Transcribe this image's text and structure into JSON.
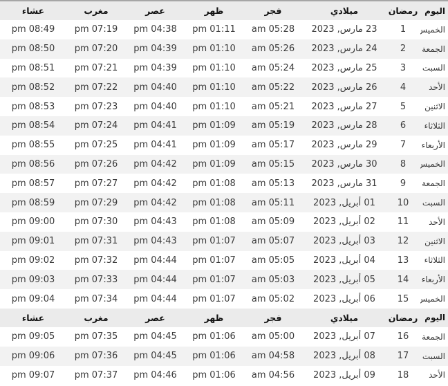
{
  "table": {
    "columns": [
      {
        "key": "day",
        "label": "اليوم"
      },
      {
        "key": "ramadan",
        "label": "رمضان"
      },
      {
        "key": "gregorian",
        "label": "ميلادي"
      },
      {
        "key": "fajr",
        "label": "فجر"
      },
      {
        "key": "dhuhr",
        "label": "ظهر"
      },
      {
        "key": "asr",
        "label": "عصر"
      },
      {
        "key": "maghrib",
        "label": "مغرب"
      },
      {
        "key": "isha",
        "label": "عشاء"
      }
    ],
    "sections": [
      {
        "rows": [
          {
            "day": "الخميس",
            "ramadan": "1",
            "gregorian": "23 مارس, 2023",
            "fajr": "am 05:28",
            "dhuhr": "pm 01:11",
            "asr": "pm 04:38",
            "maghrib": "pm 07:19",
            "isha": "pm 08:49"
          },
          {
            "day": "الجمعة",
            "ramadan": "2",
            "gregorian": "24 مارس, 2023",
            "fajr": "am 05:26",
            "dhuhr": "pm 01:10",
            "asr": "pm 04:39",
            "maghrib": "pm 07:20",
            "isha": "pm 08:50"
          },
          {
            "day": "السبت",
            "ramadan": "3",
            "gregorian": "25 مارس, 2023",
            "fajr": "am 05:24",
            "dhuhr": "pm 01:10",
            "asr": "pm 04:39",
            "maghrib": "pm 07:21",
            "isha": "pm 08:51"
          },
          {
            "day": "الأحد",
            "ramadan": "4",
            "gregorian": "26 مارس, 2023",
            "fajr": "am 05:22",
            "dhuhr": "pm 01:10",
            "asr": "pm 04:40",
            "maghrib": "pm 07:22",
            "isha": "pm 08:52"
          },
          {
            "day": "الاثنين",
            "ramadan": "5",
            "gregorian": "27 مارس, 2023",
            "fajr": "am 05:21",
            "dhuhr": "pm 01:10",
            "asr": "pm 04:40",
            "maghrib": "pm 07:23",
            "isha": "pm 08:53"
          },
          {
            "day": "الثلاثاء",
            "ramadan": "6",
            "gregorian": "28 مارس, 2023",
            "fajr": "am 05:19",
            "dhuhr": "pm 01:09",
            "asr": "pm 04:41",
            "maghrib": "pm 07:24",
            "isha": "pm 08:54"
          },
          {
            "day": "الأربعاء",
            "ramadan": "7",
            "gregorian": "29 مارس, 2023",
            "fajr": "am 05:17",
            "dhuhr": "pm 01:09",
            "asr": "pm 04:41",
            "maghrib": "pm 07:25",
            "isha": "pm 08:55"
          },
          {
            "day": "الخميس",
            "ramadan": "8",
            "gregorian": "30 مارس, 2023",
            "fajr": "am 05:15",
            "dhuhr": "pm 01:09",
            "asr": "pm 04:42",
            "maghrib": "pm 07:26",
            "isha": "pm 08:56"
          },
          {
            "day": "الجمعة",
            "ramadan": "9",
            "gregorian": "31 مارس, 2023",
            "fajr": "am 05:13",
            "dhuhr": "pm 01:08",
            "asr": "pm 04:42",
            "maghrib": "pm 07:27",
            "isha": "pm 08:57"
          },
          {
            "day": "السبت",
            "ramadan": "10",
            "gregorian": "01 أبريل, 2023",
            "fajr": "am 05:11",
            "dhuhr": "pm 01:08",
            "asr": "pm 04:42",
            "maghrib": "pm 07:29",
            "isha": "pm 08:59"
          },
          {
            "day": "الأحد",
            "ramadan": "11",
            "gregorian": "02 أبريل, 2023",
            "fajr": "am 05:09",
            "dhuhr": "pm 01:08",
            "asr": "pm 04:43",
            "maghrib": "pm 07:30",
            "isha": "pm 09:00"
          },
          {
            "day": "الاثنين",
            "ramadan": "12",
            "gregorian": "03 أبريل, 2023",
            "fajr": "am 05:07",
            "dhuhr": "pm 01:07",
            "asr": "pm 04:43",
            "maghrib": "pm 07:31",
            "isha": "pm 09:01"
          },
          {
            "day": "الثلاثاء",
            "ramadan": "13",
            "gregorian": "04 أبريل, 2023",
            "fajr": "am 05:05",
            "dhuhr": "pm 01:07",
            "asr": "pm 04:44",
            "maghrib": "pm 07:32",
            "isha": "pm 09:02"
          },
          {
            "day": "الأربعاء",
            "ramadan": "14",
            "gregorian": "05 أبريل, 2023",
            "fajr": "am 05:03",
            "dhuhr": "pm 01:07",
            "asr": "pm 04:44",
            "maghrib": "pm 07:33",
            "isha": "pm 09:03"
          },
          {
            "day": "الخميس",
            "ramadan": "15",
            "gregorian": "06 أبريل, 2023",
            "fajr": "am 05:02",
            "dhuhr": "pm 01:07",
            "asr": "pm 04:44",
            "maghrib": "pm 07:34",
            "isha": "pm 09:04"
          }
        ]
      },
      {
        "rows": [
          {
            "day": "الجمعة",
            "ramadan": "16",
            "gregorian": "07 أبريل, 2023",
            "fajr": "am 05:00",
            "dhuhr": "pm 01:06",
            "asr": "pm 04:45",
            "maghrib": "pm 07:35",
            "isha": "pm 09:05"
          },
          {
            "day": "السبت",
            "ramadan": "17",
            "gregorian": "08 أبريل, 2023",
            "fajr": "am 04:58",
            "dhuhr": "pm 01:06",
            "asr": "pm 04:45",
            "maghrib": "pm 07:36",
            "isha": "pm 09:06"
          },
          {
            "day": "الأحد",
            "ramadan": "18",
            "gregorian": "09 أبريل, 2023",
            "fajr": "am 04:56",
            "dhuhr": "pm 01:06",
            "asr": "pm 04:46",
            "maghrib": "pm 07:37",
            "isha": "pm 09:07"
          }
        ]
      }
    ]
  },
  "colors": {
    "header_bg": "#ebebeb",
    "stripe_bg": "#f2f2f2",
    "row_bg": "#ffffff",
    "top_border": "#a6a6a6",
    "text": "#3b3b3b",
    "header_text": "#141414"
  }
}
